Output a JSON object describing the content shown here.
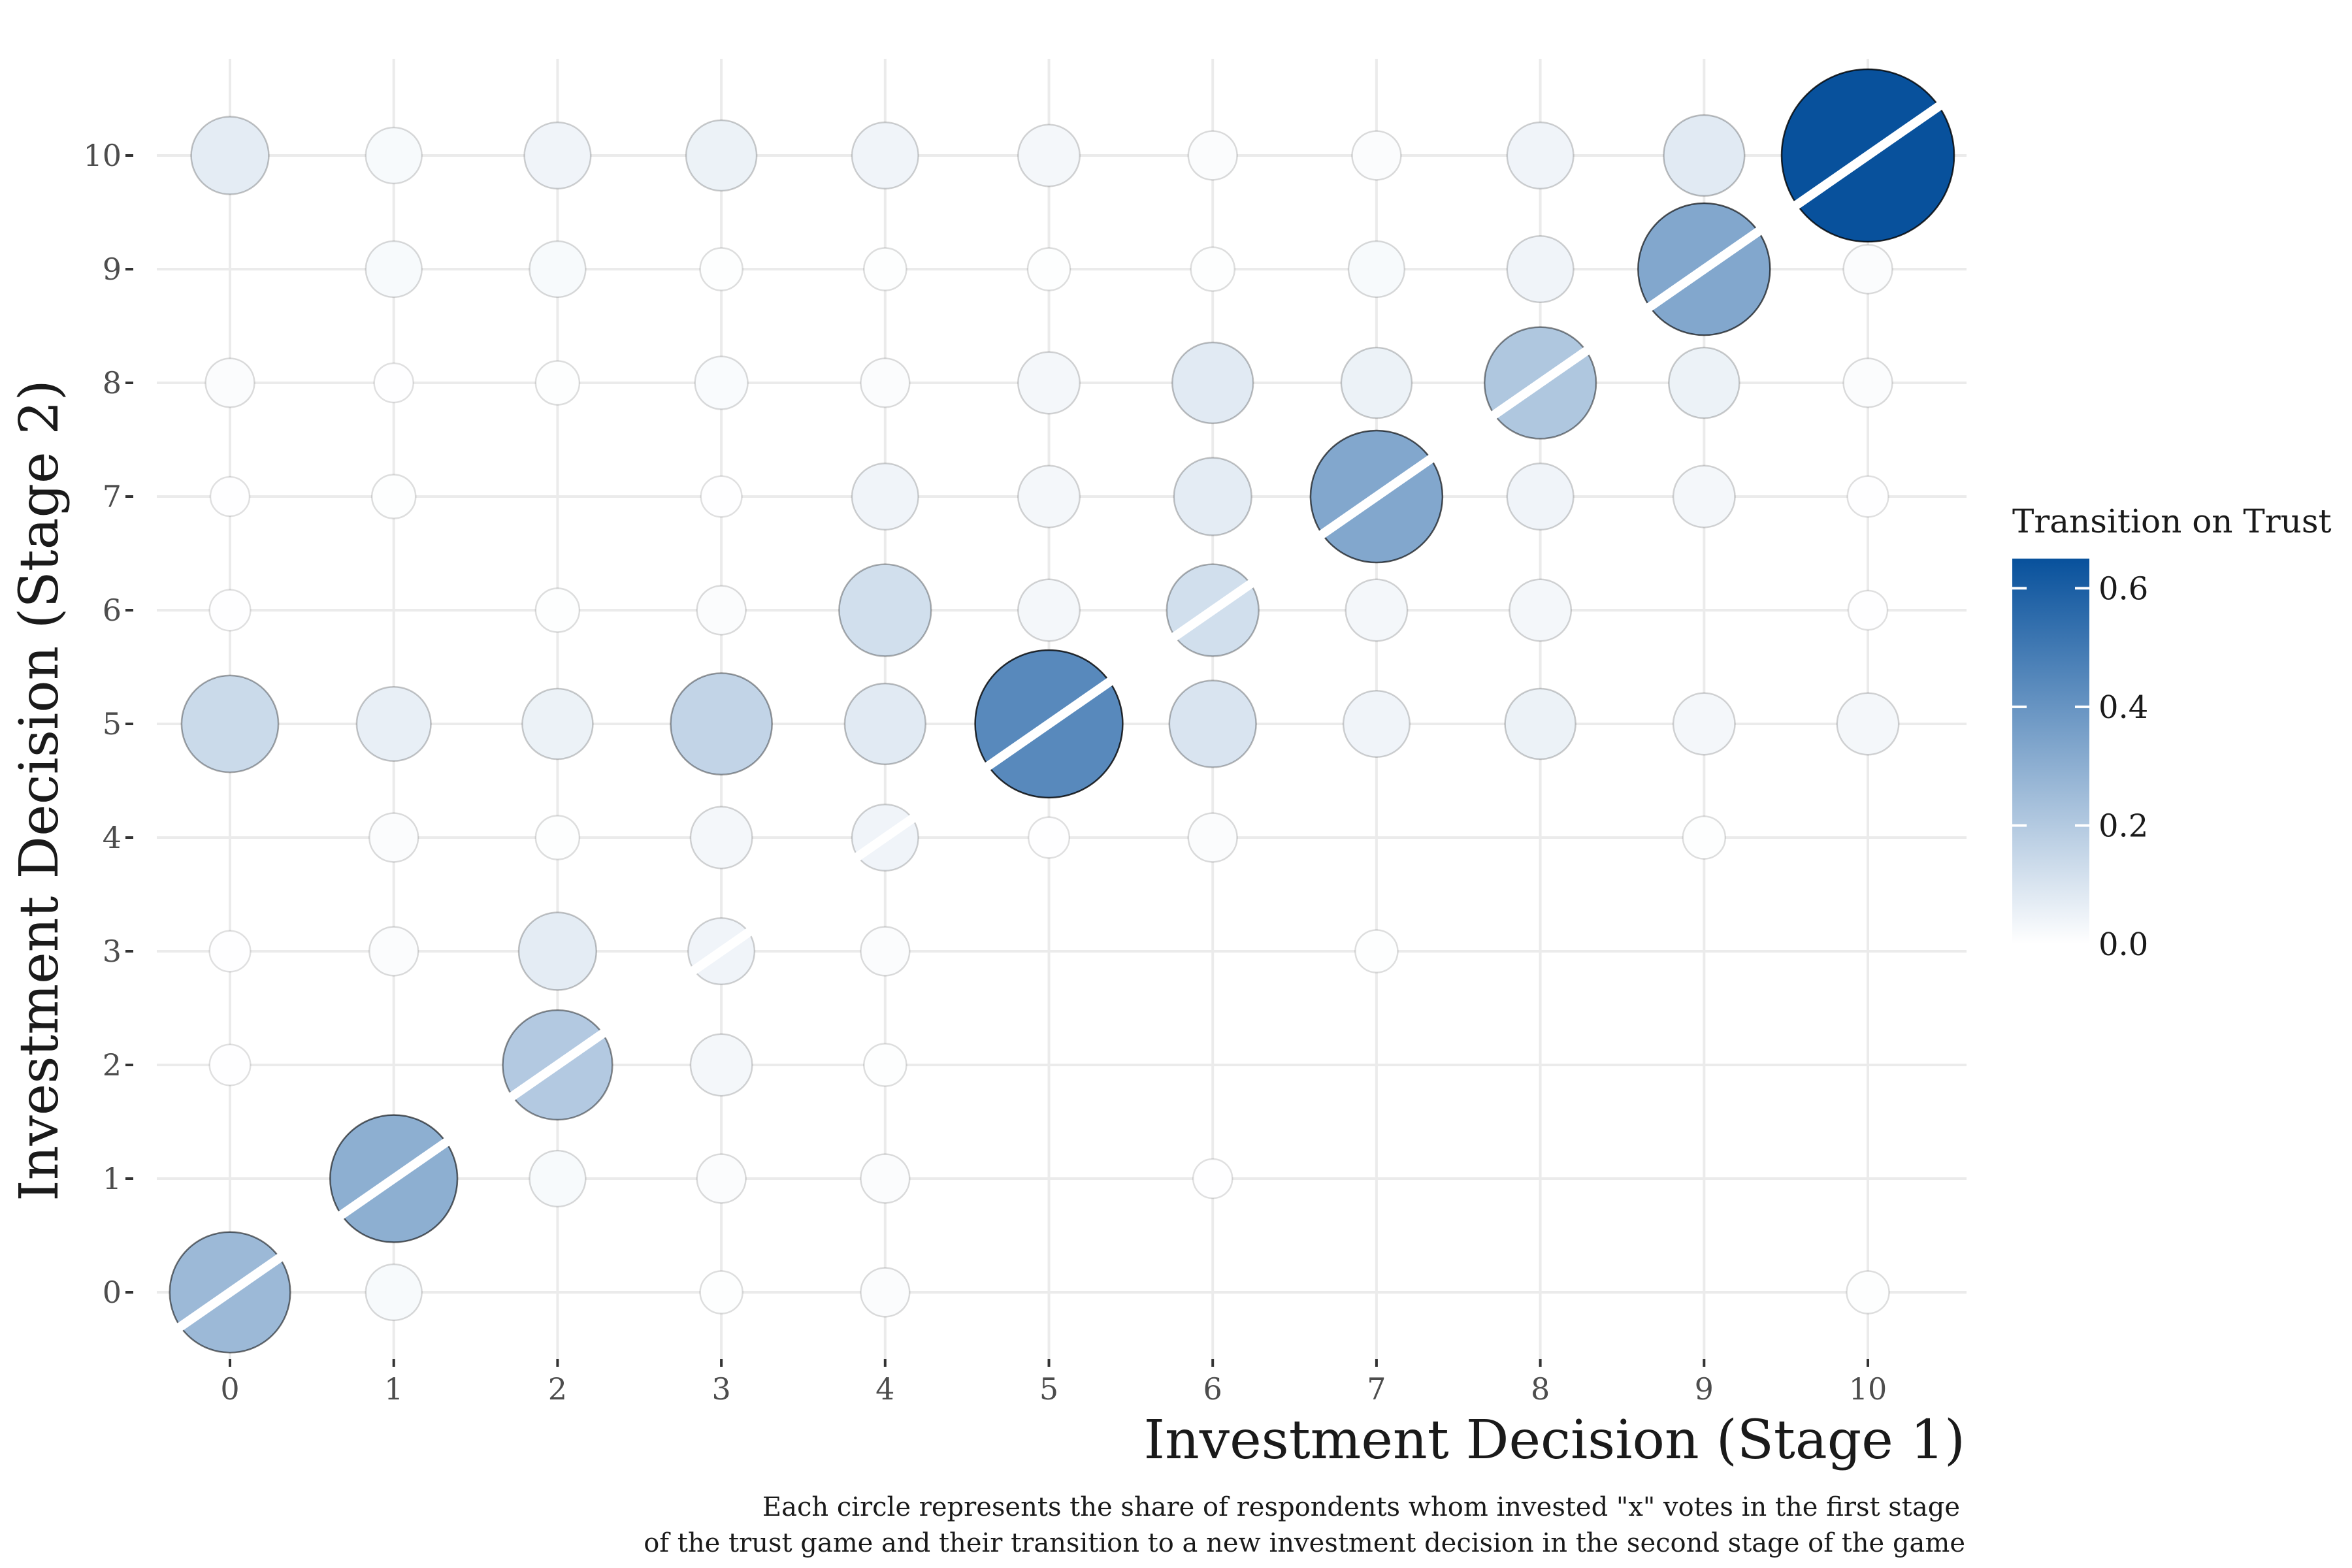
{
  "chart_data": {
    "type": "scatter",
    "xlabel": "Investment Decision (Stage 1)",
    "ylabel": "Investment Decision (Stage 2)",
    "caption_lines": [
      "Each circle represents the share of respondents whom invested \"x\" votes in  the first stage",
      "of the trust game and their transition to a new investment decision in the second stage of the game"
    ],
    "x_ticks": [
      0,
      1,
      2,
      3,
      4,
      5,
      6,
      7,
      8,
      9,
      10
    ],
    "y_ticks": [
      0,
      1,
      2,
      3,
      4,
      5,
      6,
      7,
      8,
      9,
      10
    ],
    "xlim": [
      -0.5,
      10.5
    ],
    "ylim": [
      -0.5,
      10.6
    ],
    "legend": {
      "title": "Transition on Trust",
      "labels": [
        "0.6",
        "0.4",
        "0.2",
        "0.0"
      ],
      "values": [
        0.6,
        0.4,
        0.2,
        0.0
      ],
      "range": [
        0,
        0.65
      ],
      "color_low": "#ffffff",
      "color_high": "#08519c",
      "placement": "right"
    },
    "diagonal_color": "#ffffff",
    "points": [
      {
        "x": 0,
        "y": 0,
        "share": 0.26
      },
      {
        "x": 0,
        "y": 2,
        "share": 0.003
      },
      {
        "x": 0,
        "y": 3,
        "share": 0.003
      },
      {
        "x": 0,
        "y": 5,
        "share": 0.14
      },
      {
        "x": 0,
        "y": 6,
        "share": 0.003
      },
      {
        "x": 0,
        "y": 7,
        "share": 0.002
      },
      {
        "x": 0,
        "y": 8,
        "share": 0.01
      },
      {
        "x": 0,
        "y": 10,
        "share": 0.07
      },
      {
        "x": 1,
        "y": 0,
        "share": 0.02
      },
      {
        "x": 1,
        "y": 1,
        "share": 0.3
      },
      {
        "x": 1,
        "y": 3,
        "share": 0.01
      },
      {
        "x": 1,
        "y": 4,
        "share": 0.01
      },
      {
        "x": 1,
        "y": 5,
        "share": 0.06
      },
      {
        "x": 1,
        "y": 7,
        "share": 0.005
      },
      {
        "x": 1,
        "y": 8,
        "share": 0.002
      },
      {
        "x": 1,
        "y": 9,
        "share": 0.02
      },
      {
        "x": 1,
        "y": 10,
        "share": 0.02
      },
      {
        "x": 2,
        "y": 1,
        "share": 0.02
      },
      {
        "x": 2,
        "y": 2,
        "share": 0.2
      },
      {
        "x": 2,
        "y": 3,
        "share": 0.07
      },
      {
        "x": 2,
        "y": 4,
        "share": 0.005
      },
      {
        "x": 2,
        "y": 5,
        "share": 0.05
      },
      {
        "x": 2,
        "y": 6,
        "share": 0.005
      },
      {
        "x": 2,
        "y": 8,
        "share": 0.005
      },
      {
        "x": 2,
        "y": 9,
        "share": 0.02
      },
      {
        "x": 2,
        "y": 10,
        "share": 0.04
      },
      {
        "x": 3,
        "y": 0,
        "share": 0.004
      },
      {
        "x": 3,
        "y": 1,
        "share": 0.01
      },
      {
        "x": 3,
        "y": 2,
        "share": 0.03
      },
      {
        "x": 3,
        "y": 3,
        "share": 0.04
      },
      {
        "x": 3,
        "y": 4,
        "share": 0.03
      },
      {
        "x": 3,
        "y": 5,
        "share": 0.16
      },
      {
        "x": 3,
        "y": 6,
        "share": 0.01
      },
      {
        "x": 3,
        "y": 7,
        "share": 0.003
      },
      {
        "x": 3,
        "y": 8,
        "share": 0.015
      },
      {
        "x": 3,
        "y": 9,
        "share": 0.004
      },
      {
        "x": 3,
        "y": 10,
        "share": 0.05
      },
      {
        "x": 4,
        "y": 0,
        "share": 0.01
      },
      {
        "x": 4,
        "y": 1,
        "share": 0.01
      },
      {
        "x": 4,
        "y": 2,
        "share": 0.004
      },
      {
        "x": 4,
        "y": 3,
        "share": 0.01
      },
      {
        "x": 4,
        "y": 4,
        "share": 0.04
      },
      {
        "x": 4,
        "y": 5,
        "share": 0.08
      },
      {
        "x": 4,
        "y": 6,
        "share": 0.12
      },
      {
        "x": 4,
        "y": 7,
        "share": 0.04
      },
      {
        "x": 4,
        "y": 8,
        "share": 0.01
      },
      {
        "x": 4,
        "y": 9,
        "share": 0.004
      },
      {
        "x": 4,
        "y": 10,
        "share": 0.04
      },
      {
        "x": 5,
        "y": 4,
        "share": 0.003
      },
      {
        "x": 5,
        "y": 5,
        "share": 0.44
      },
      {
        "x": 5,
        "y": 6,
        "share": 0.03
      },
      {
        "x": 5,
        "y": 7,
        "share": 0.03
      },
      {
        "x": 5,
        "y": 8,
        "share": 0.03
      },
      {
        "x": 5,
        "y": 9,
        "share": 0.004
      },
      {
        "x": 5,
        "y": 10,
        "share": 0.03
      },
      {
        "x": 6,
        "y": 1,
        "share": 0.002
      },
      {
        "x": 6,
        "y": 4,
        "share": 0.01
      },
      {
        "x": 6,
        "y": 5,
        "share": 0.1
      },
      {
        "x": 6,
        "y": 6,
        "share": 0.12
      },
      {
        "x": 6,
        "y": 7,
        "share": 0.07
      },
      {
        "x": 6,
        "y": 8,
        "share": 0.08
      },
      {
        "x": 6,
        "y": 9,
        "share": 0.005
      },
      {
        "x": 6,
        "y": 10,
        "share": 0.01
      },
      {
        "x": 7,
        "y": 3,
        "share": 0.004
      },
      {
        "x": 7,
        "y": 5,
        "share": 0.04
      },
      {
        "x": 7,
        "y": 6,
        "share": 0.03
      },
      {
        "x": 7,
        "y": 7,
        "share": 0.33
      },
      {
        "x": 7,
        "y": 8,
        "share": 0.05
      },
      {
        "x": 7,
        "y": 9,
        "share": 0.02
      },
      {
        "x": 7,
        "y": 10,
        "share": 0.01
      },
      {
        "x": 8,
        "y": 5,
        "share": 0.05
      },
      {
        "x": 8,
        "y": 6,
        "share": 0.03
      },
      {
        "x": 8,
        "y": 7,
        "share": 0.04
      },
      {
        "x": 8,
        "y": 8,
        "share": 0.21
      },
      {
        "x": 8,
        "y": 9,
        "share": 0.04
      },
      {
        "x": 8,
        "y": 10,
        "share": 0.04
      },
      {
        "x": 9,
        "y": 4,
        "share": 0.004
      },
      {
        "x": 9,
        "y": 5,
        "share": 0.03
      },
      {
        "x": 9,
        "y": 7,
        "share": 0.03
      },
      {
        "x": 9,
        "y": 8,
        "share": 0.05
      },
      {
        "x": 9,
        "y": 9,
        "share": 0.33
      },
      {
        "x": 9,
        "y": 10,
        "share": 0.08
      },
      {
        "x": 10,
        "y": 0,
        "share": 0.004
      },
      {
        "x": 10,
        "y": 5,
        "share": 0.03
      },
      {
        "x": 10,
        "y": 6,
        "share": 0.002
      },
      {
        "x": 10,
        "y": 7,
        "share": 0.003
      },
      {
        "x": 10,
        "y": 8,
        "share": 0.01
      },
      {
        "x": 10,
        "y": 9,
        "share": 0.01
      },
      {
        "x": 10,
        "y": 10,
        "share": 0.65
      }
    ]
  }
}
